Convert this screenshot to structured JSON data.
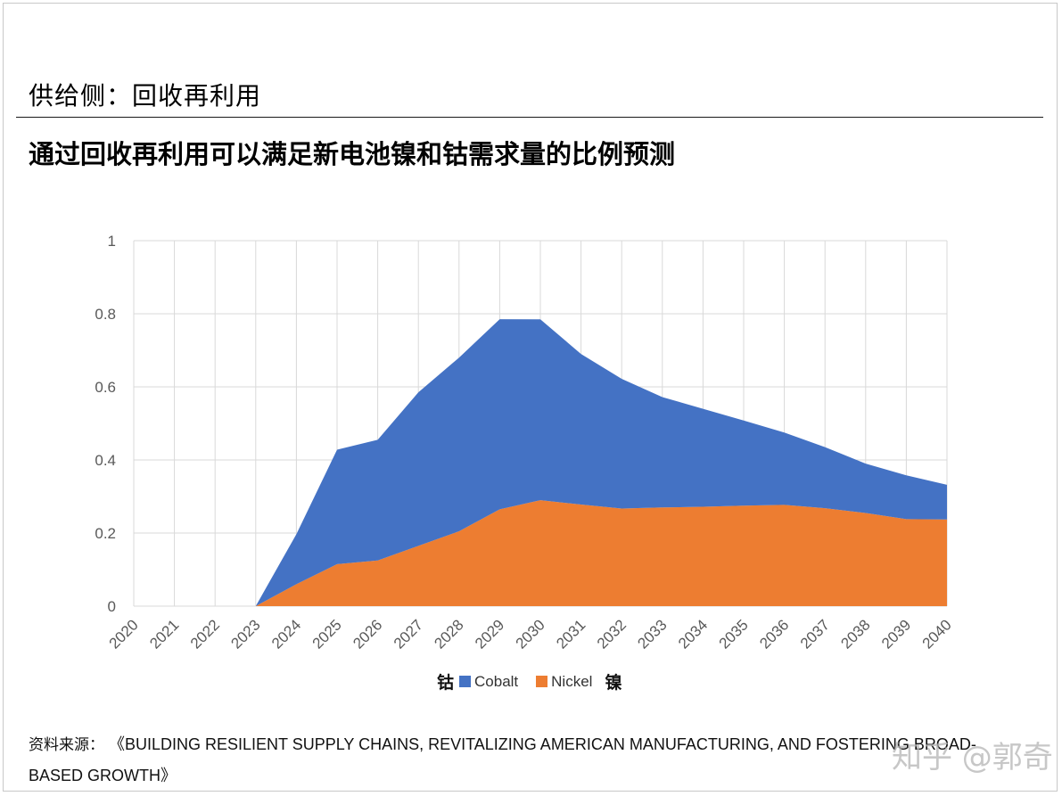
{
  "header": {
    "section_title": "供给侧：回收再利用",
    "main_title": "通过回收再利用可以满足新电池镍和钴需求量的比例预测"
  },
  "legend": {
    "cobalt_cn": "钴",
    "cobalt_label": "Cobalt",
    "nickel_label": "Nickel",
    "nickel_cn": "镍"
  },
  "source": {
    "label": "资料来源：",
    "text": "《BUILDING RESILIENT SUPPLY CHAINS, REVITALIZING AMERICAN MANUFACTURING, AND FOSTERING BROAD-BASED GROWTH》"
  },
  "watermark": "知乎 @郭奇",
  "chart_data": {
    "type": "area",
    "stacked": true,
    "categories": [
      "2020",
      "2021",
      "2022",
      "2023",
      "2024",
      "2025",
      "2026",
      "2027",
      "2028",
      "2029",
      "2030",
      "2031",
      "2032",
      "2033",
      "2034",
      "2035",
      "2036",
      "2037",
      "2038",
      "2039",
      "2040"
    ],
    "series": [
      {
        "name": "Nickel",
        "color": "#ED7D31",
        "values": [
          0,
          0,
          0,
          0,
          0.06,
          0.115,
          0.125,
          0.165,
          0.205,
          0.265,
          0.29,
          0.278,
          0.267,
          0.27,
          0.272,
          0.275,
          0.277,
          0.268,
          0.255,
          0.238,
          0.237
        ]
      },
      {
        "name": "Cobalt",
        "color": "#4472C4",
        "values": [
          0,
          0,
          0,
          0,
          0.137,
          0.313,
          0.33,
          0.42,
          0.475,
          0.52,
          0.495,
          0.412,
          0.355,
          0.302,
          0.268,
          0.233,
          0.198,
          0.167,
          0.135,
          0.12,
          0.095
        ]
      }
    ],
    "ylim": [
      0,
      1
    ],
    "yticks": [
      "0",
      "0.2",
      "0.4",
      "0.6",
      "0.8",
      "1"
    ],
    "grid": true,
    "legend_position": "bottom"
  }
}
